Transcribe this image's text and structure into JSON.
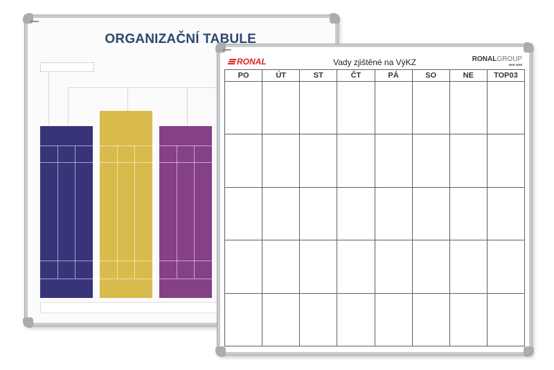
{
  "back_board": {
    "tiny_label": "■■■■■",
    "title": "ORGANIZAČNÍ TABULE",
    "columns": [
      {
        "name": "blue",
        "color": "#383479"
      },
      {
        "name": "yellow",
        "color": "#d8bb4c"
      },
      {
        "name": "purple",
        "color": "#854086"
      }
    ]
  },
  "front_board": {
    "tiny_label": "■■■■■",
    "logo_left": "RONAL",
    "title": "Vady zjištěné na VýKZ",
    "logo_right_bold": "RONAL",
    "logo_right_light": "GROUP",
    "logo_right_sub": "■■■ ■■■",
    "days": [
      "PO",
      "ÚT",
      "ST",
      "ČT",
      "PÁ",
      "SO",
      "NE",
      "TOP03"
    ],
    "row_count": 5
  }
}
